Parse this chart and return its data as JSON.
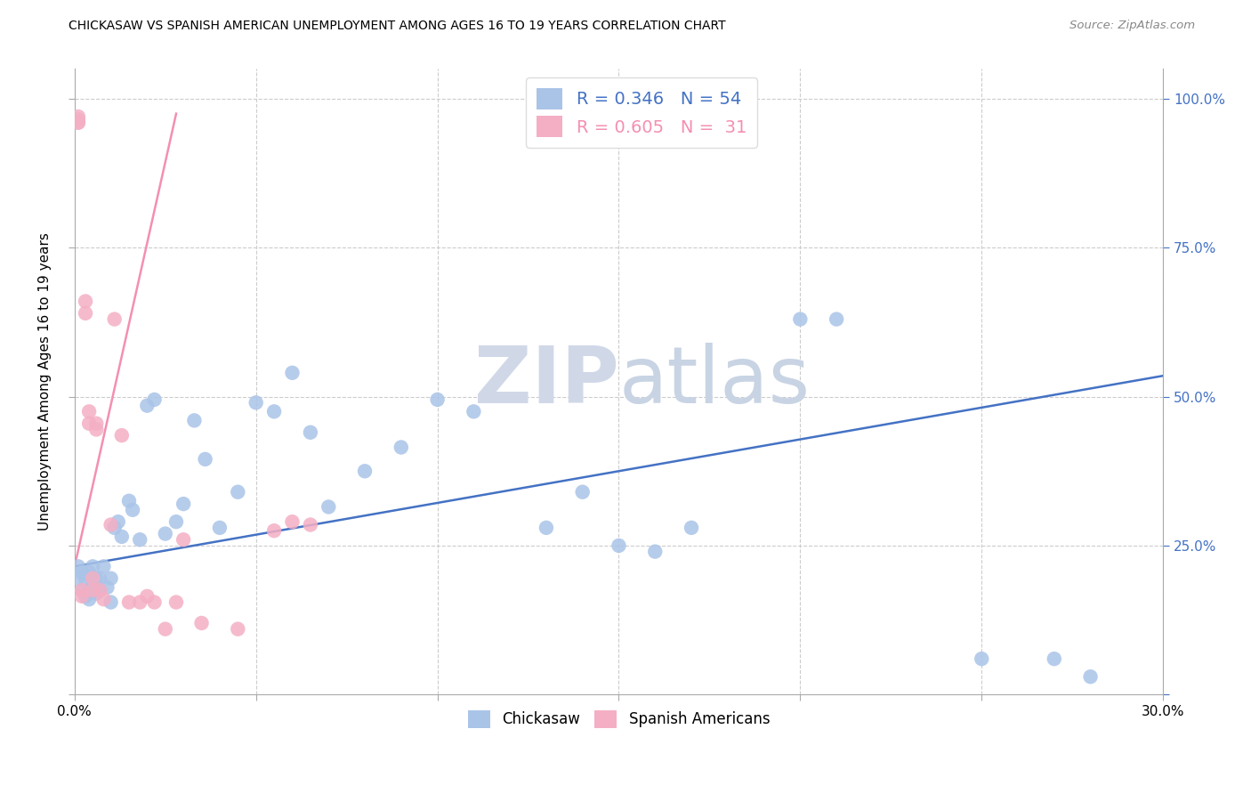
{
  "title": "CHICKASAW VS SPANISH AMERICAN UNEMPLOYMENT AMONG AGES 16 TO 19 YEARS CORRELATION CHART",
  "source": "Source: ZipAtlas.com",
  "ylabel": "Unemployment Among Ages 16 to 19 years",
  "xlim": [
    0.0,
    0.3
  ],
  "ylim": [
    0.0,
    1.05
  ],
  "chickasaw_R": "0.346",
  "chickasaw_N": "54",
  "spanish_R": "0.605",
  "spanish_N": "31",
  "chickasaw_color": "#aac4e8",
  "spanish_color": "#f4afc4",
  "chickasaw_line_color": "#4472c4",
  "spanish_line_color": "#f48fb1",
  "right_tick_color": "#4472c4",
  "watermark_color": "#d0d8e8",
  "chickasaw_line_x": [
    0.0,
    0.3
  ],
  "chickasaw_line_y": [
    0.215,
    0.535
  ],
  "spanish_line_x": [
    0.0,
    0.028
  ],
  "spanish_line_y": [
    0.215,
    0.975
  ],
  "chickasaw_x": [
    0.001,
    0.001,
    0.002,
    0.002,
    0.003,
    0.003,
    0.004,
    0.004,
    0.004,
    0.005,
    0.005,
    0.005,
    0.006,
    0.006,
    0.007,
    0.007,
    0.008,
    0.009,
    0.01,
    0.01,
    0.011,
    0.012,
    0.013,
    0.015,
    0.016,
    0.018,
    0.02,
    0.022,
    0.025,
    0.028,
    0.03,
    0.033,
    0.036,
    0.04,
    0.045,
    0.05,
    0.055,
    0.06,
    0.065,
    0.07,
    0.08,
    0.09,
    0.1,
    0.11,
    0.13,
    0.14,
    0.15,
    0.16,
    0.17,
    0.2,
    0.21,
    0.25,
    0.27,
    0.28
  ],
  "chickasaw_y": [
    0.215,
    0.195,
    0.205,
    0.175,
    0.195,
    0.165,
    0.175,
    0.205,
    0.16,
    0.19,
    0.175,
    0.215,
    0.195,
    0.17,
    0.195,
    0.175,
    0.215,
    0.18,
    0.195,
    0.155,
    0.28,
    0.29,
    0.265,
    0.325,
    0.31,
    0.26,
    0.485,
    0.495,
    0.27,
    0.29,
    0.32,
    0.46,
    0.395,
    0.28,
    0.34,
    0.49,
    0.475,
    0.54,
    0.44,
    0.315,
    0.375,
    0.415,
    0.495,
    0.475,
    0.28,
    0.34,
    0.25,
    0.24,
    0.28,
    0.63,
    0.63,
    0.06,
    0.06,
    0.03
  ],
  "spanish_x": [
    0.001,
    0.001,
    0.001,
    0.001,
    0.002,
    0.002,
    0.003,
    0.003,
    0.004,
    0.004,
    0.005,
    0.005,
    0.006,
    0.006,
    0.007,
    0.008,
    0.01,
    0.011,
    0.013,
    0.015,
    0.018,
    0.02,
    0.022,
    0.025,
    0.028,
    0.03,
    0.035,
    0.045,
    0.055,
    0.06,
    0.065
  ],
  "spanish_y": [
    0.97,
    0.965,
    0.96,
    0.96,
    0.165,
    0.175,
    0.66,
    0.64,
    0.475,
    0.455,
    0.175,
    0.195,
    0.455,
    0.445,
    0.175,
    0.16,
    0.285,
    0.63,
    0.435,
    0.155,
    0.155,
    0.165,
    0.155,
    0.11,
    0.155,
    0.26,
    0.12,
    0.11,
    0.275,
    0.29,
    0.285
  ]
}
